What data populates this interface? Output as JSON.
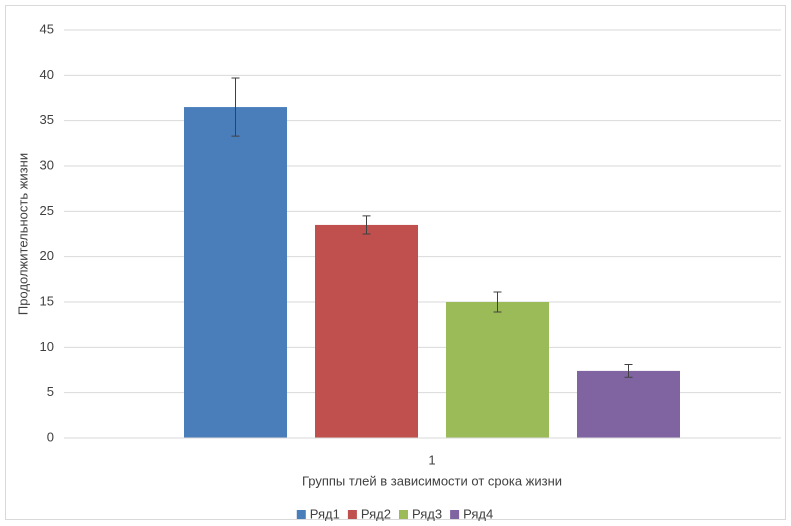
{
  "chart_data": {
    "type": "bar",
    "x_label": "Группы тлей в зависимости от срока жизни",
    "y_label": "Продолжительность жизни",
    "categories": [
      "1"
    ],
    "series": [
      {
        "name": "Ряд1",
        "color": "#4a7ebb",
        "values": [
          36.5
        ],
        "errors": [
          3.2
        ]
      },
      {
        "name": "Ряд2",
        "color": "#c0504d",
        "values": [
          23.5
        ],
        "errors": [
          1.0
        ]
      },
      {
        "name": "Ряд3",
        "color": "#9bbb59",
        "values": [
          15.0
        ],
        "errors": [
          1.1
        ]
      },
      {
        "name": "Ряд4",
        "color": "#8064a2",
        "values": [
          7.4
        ],
        "errors": [
          0.7
        ]
      }
    ],
    "ylim": [
      0,
      45
    ],
    "yticks": [
      0,
      5,
      10,
      15,
      20,
      25,
      30,
      35,
      40,
      45
    ],
    "grid": true,
    "legend": "bottom"
  }
}
